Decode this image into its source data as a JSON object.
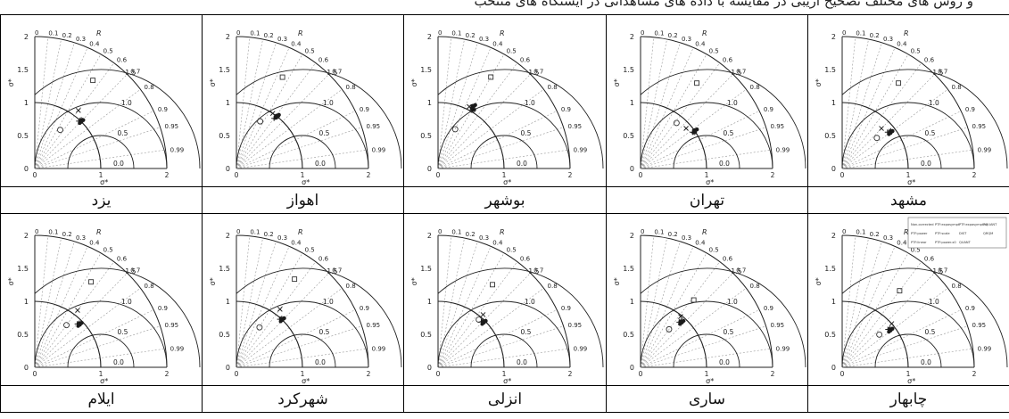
{
  "header_fragment": "و روش های مختلف تصحیح اریبی در مقایسه با داده های مشاهداتی در ایستگاه های منتخب",
  "chart_data": {
    "type": "taylor",
    "axis": {
      "r_label": "R",
      "x_label": "σ*",
      "y_label": "σ*",
      "std_ticks": [
        "0",
        "0.5",
        "1",
        "1.5",
        "2"
      ],
      "corr_ticks": [
        "0",
        "0.1",
        "0.2",
        "0.3",
        "0.4",
        "0.5",
        "0.6",
        "0.7",
        "0.8",
        "0.9",
        "0.95",
        "0.99"
      ],
      "rms_labels": [
        "0.0",
        "0.5",
        "1.0",
        "1.5"
      ]
    },
    "legend_entries": [
      "Non-corrected",
      "PTF:expasympt",
      "PTF:expasympt.to",
      "RQUANT",
      "PTF:power",
      "PTF:scale",
      "DIST",
      "QRQM",
      "PTF:linear",
      "PTF:power.x0",
      "QUANT"
    ],
    "panels": [
      {
        "station": "مشهد",
        "points": [
          {
            "s": 0.7,
            "r": 0.75
          },
          {
            "s": 0.85,
            "r": 0.7
          },
          {
            "s": 0.88,
            "r": 0.78
          },
          {
            "s": 0.93,
            "r": 0.79
          },
          {
            "s": 0.91,
            "r": 0.8
          },
          {
            "s": 1.55,
            "r": 0.55
          }
        ]
      },
      {
        "station": "تهران",
        "points": [
          {
            "s": 0.88,
            "r": 0.62
          },
          {
            "s": 0.92,
            "r": 0.75
          },
          {
            "s": 0.96,
            "r": 0.82
          },
          {
            "s": 0.98,
            "r": 0.83
          },
          {
            "s": 1.0,
            "r": 0.82
          },
          {
            "s": 1.55,
            "r": 0.55
          }
        ]
      },
      {
        "station": "بوشهر",
        "points": [
          {
            "s": 0.65,
            "r": 0.4
          },
          {
            "s": 1.05,
            "r": 0.45
          },
          {
            "s": 1.02,
            "r": 0.5
          },
          {
            "s": 1.04,
            "r": 0.52
          },
          {
            "s": 1.08,
            "r": 0.49
          },
          {
            "s": 1.6,
            "r": 0.5
          }
        ]
      },
      {
        "station": "اهواز",
        "points": [
          {
            "s": 0.8,
            "r": 0.45
          },
          {
            "s": 1.0,
            "r": 0.55
          },
          {
            "s": 0.95,
            "r": 0.6
          },
          {
            "s": 1.0,
            "r": 0.62
          },
          {
            "s": 1.0,
            "r": 0.61
          },
          {
            "s": 1.55,
            "r": 0.45
          }
        ]
      },
      {
        "station": "یزد",
        "points": [
          {
            "s": 0.7,
            "r": 0.55
          },
          {
            "s": 1.1,
            "r": 0.6
          },
          {
            "s": 0.98,
            "r": 0.68
          },
          {
            "s": 1.02,
            "r": 0.69
          },
          {
            "s": 1.0,
            "r": 0.7
          },
          {
            "s": 1.6,
            "r": 0.55
          }
        ]
      },
      {
        "station": "چابهار",
        "points": [
          {
            "s": 0.75,
            "r": 0.75
          },
          {
            "s": 1.0,
            "r": 0.75
          },
          {
            "s": 0.9,
            "r": 0.77
          },
          {
            "s": 0.93,
            "r": 0.78
          },
          {
            "s": 0.92,
            "r": 0.79
          },
          {
            "s": 1.45,
            "r": 0.6
          }
        ]
      },
      {
        "station": "ساری",
        "points": [
          {
            "s": 0.72,
            "r": 0.6
          },
          {
            "s": 0.98,
            "r": 0.62
          },
          {
            "s": 0.9,
            "r": 0.65
          },
          {
            "s": 0.93,
            "r": 0.66
          },
          {
            "s": 0.92,
            "r": 0.67
          },
          {
            "s": 1.3,
            "r": 0.62
          }
        ]
      },
      {
        "station": "انزلی",
        "points": [
          {
            "s": 0.95,
            "r": 0.65
          },
          {
            "s": 1.05,
            "r": 0.65
          },
          {
            "s": 0.95,
            "r": 0.69
          },
          {
            "s": 0.98,
            "r": 0.7
          },
          {
            "s": 0.97,
            "r": 0.71
          },
          {
            "s": 1.5,
            "r": 0.55
          }
        ]
      },
      {
        "station": "شهرکرد",
        "points": [
          {
            "s": 0.7,
            "r": 0.5
          },
          {
            "s": 1.1,
            "r": 0.6
          },
          {
            "s": 0.98,
            "r": 0.67
          },
          {
            "s": 1.01,
            "r": 0.68
          },
          {
            "s": 1.0,
            "r": 0.69
          },
          {
            "s": 1.6,
            "r": 0.55
          }
        ]
      },
      {
        "station": "ایلام",
        "points": [
          {
            "s": 0.8,
            "r": 0.6
          },
          {
            "s": 1.08,
            "r": 0.6
          },
          {
            "s": 0.92,
            "r": 0.7
          },
          {
            "s": 0.95,
            "r": 0.71
          },
          {
            "s": 0.94,
            "r": 0.72
          },
          {
            "s": 1.55,
            "r": 0.55
          }
        ]
      }
    ]
  }
}
